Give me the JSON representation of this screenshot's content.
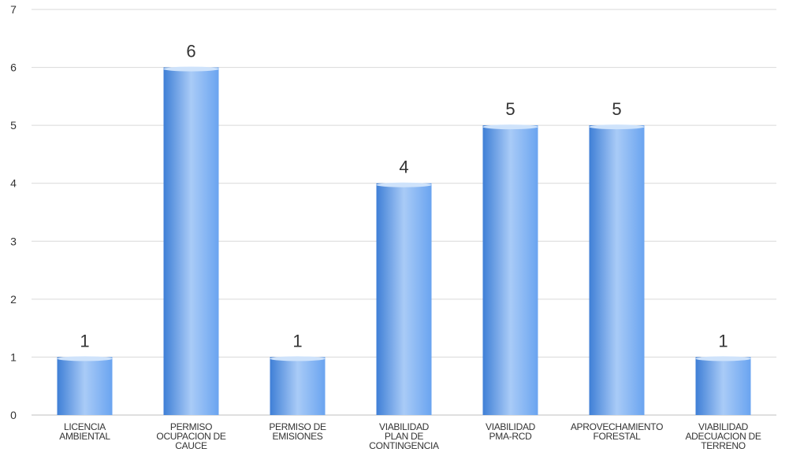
{
  "chart_data": {
    "type": "bar",
    "categories": [
      [
        "LICENCIA",
        "AMBIENTAL"
      ],
      [
        "PERMISO",
        "OCUPACION DE",
        "CAUCE"
      ],
      [
        "PERMISO DE",
        "EMISIONES"
      ],
      [
        "VIABILIDAD",
        "PLAN DE",
        "CONTINGENCIA"
      ],
      [
        "VIABILIDAD",
        "PMA-RCD"
      ],
      [
        "APROVECHAMIENTO",
        "FORESTAL"
      ],
      [
        "VIABILIDAD",
        "ADECUACION DE",
        "TERRENO"
      ]
    ],
    "values": [
      1,
      6,
      1,
      4,
      5,
      5,
      1
    ],
    "data_labels": [
      "1",
      "6",
      "1",
      "4",
      "5",
      "5",
      "1"
    ],
    "title": "",
    "xlabel": "",
    "ylabel": "",
    "ylim": [
      0,
      7
    ],
    "yticks": [
      "0",
      "1",
      "2",
      "3",
      "4",
      "5",
      "6",
      "7"
    ],
    "grid": true,
    "legend": "none",
    "colors": {
      "bar_light": "#a9cbf7",
      "bar_mid": "#6aa4f0",
      "bar_dark": "#3f7fd6",
      "bar_top": "#cfe3fb",
      "grid": "#d9d9d9",
      "text": "#333333"
    }
  }
}
